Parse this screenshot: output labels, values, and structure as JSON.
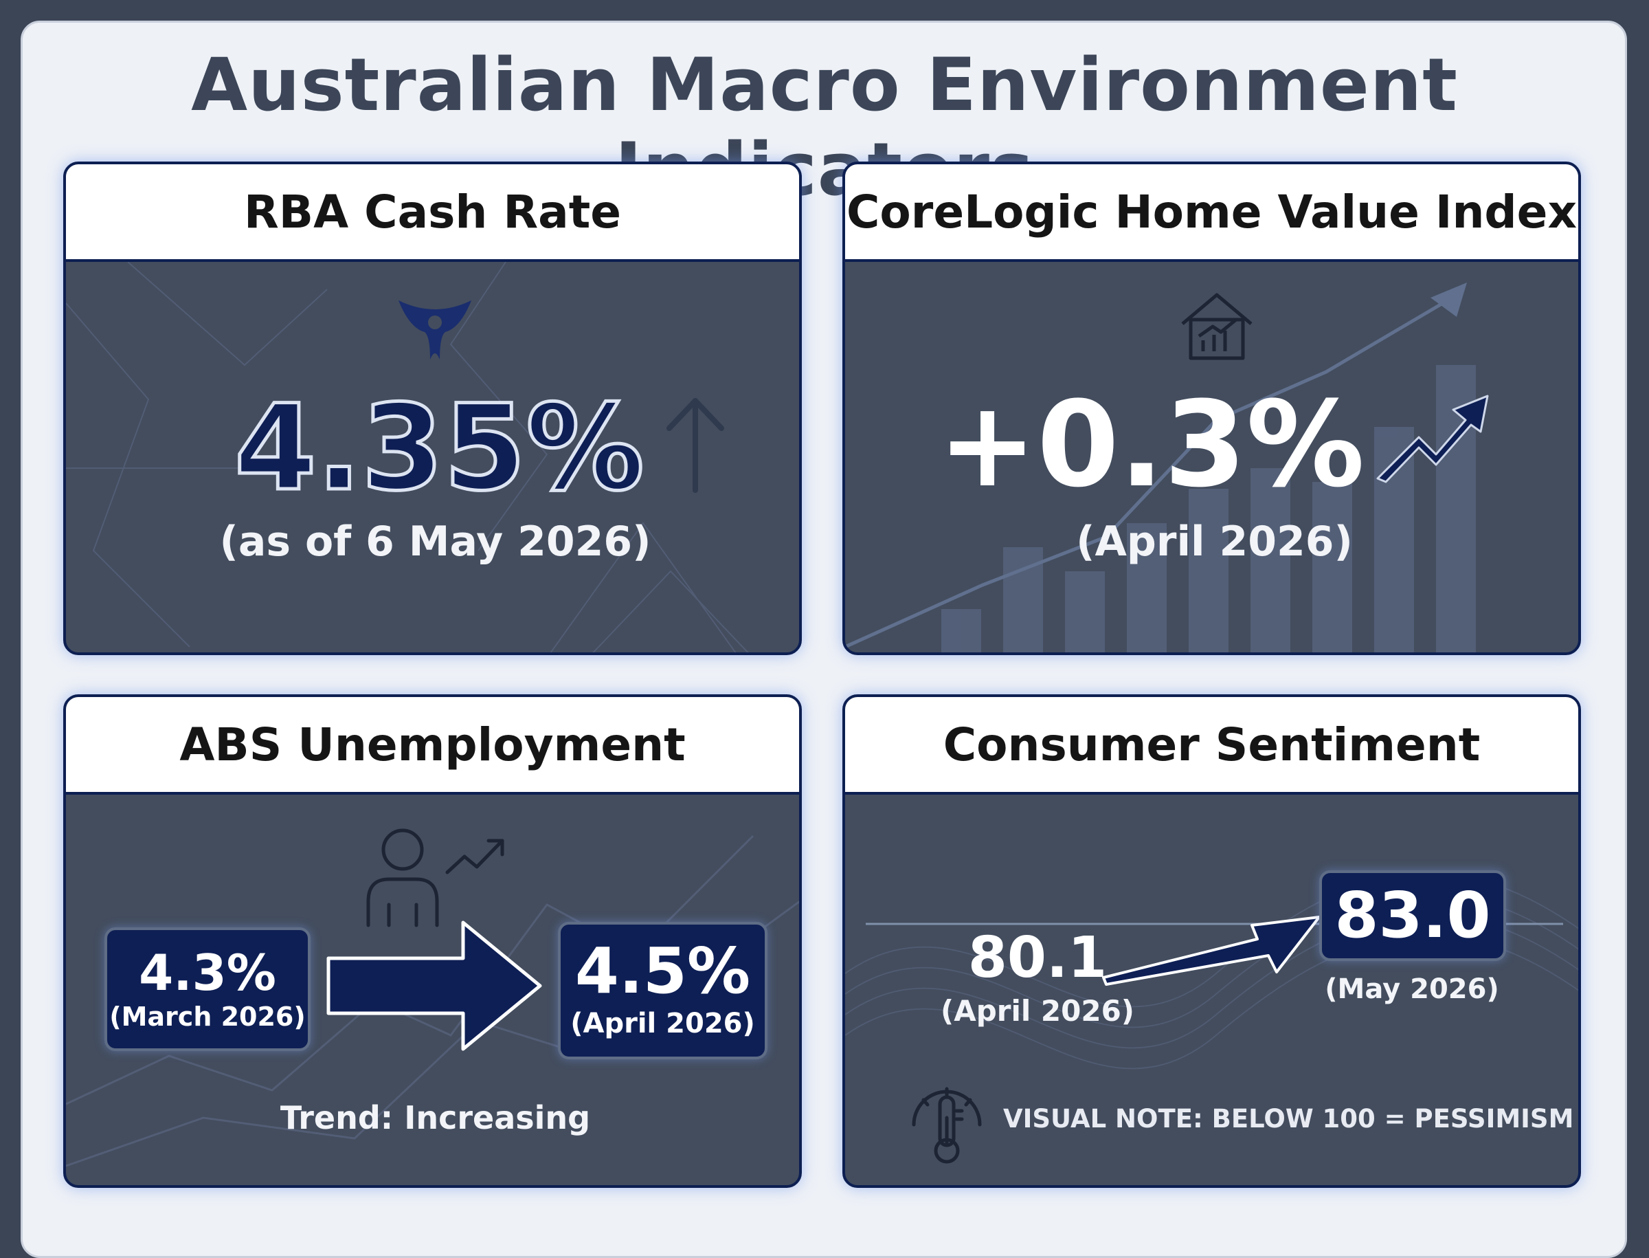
{
  "page": {
    "title": "Australian Macro Environment Indicators"
  },
  "cards": {
    "cash_rate": {
      "title": "RBA Cash Rate",
      "value": "4.35%",
      "date": "(as of 6 May 2026)",
      "trend_icon": "arrow-up-icon",
      "logo_icon": "rba-emblem-icon"
    },
    "home_value": {
      "title": "CoreLogic Home Value Index",
      "value": "+0.3%",
      "date": "(April 2026)",
      "icon": "house-growth-icon",
      "trend_icon": "trend-up-arrow-icon"
    },
    "unemployment": {
      "title": "ABS Unemployment",
      "from_value": "4.3%",
      "from_date": "(March 2026)",
      "to_value": "4.5%",
      "to_date": "(April 2026)",
      "trend": "Trend: Increasing",
      "icon": "person-trend-icon"
    },
    "sentiment": {
      "title": "Consumer Sentiment",
      "from_value": "80.1",
      "from_date": "(April 2026)",
      "to_value": "83.0",
      "to_date": "(May 2026)",
      "note": "VISUAL NOTE: BELOW 100 = PESSIMISM",
      "note_icon": "thermometer-gauge-icon"
    }
  },
  "colors": {
    "navy": "#0e1f55",
    "card_bg": "#434d5e",
    "page_bg": "#eef1f6",
    "frame": "#3b4556"
  }
}
